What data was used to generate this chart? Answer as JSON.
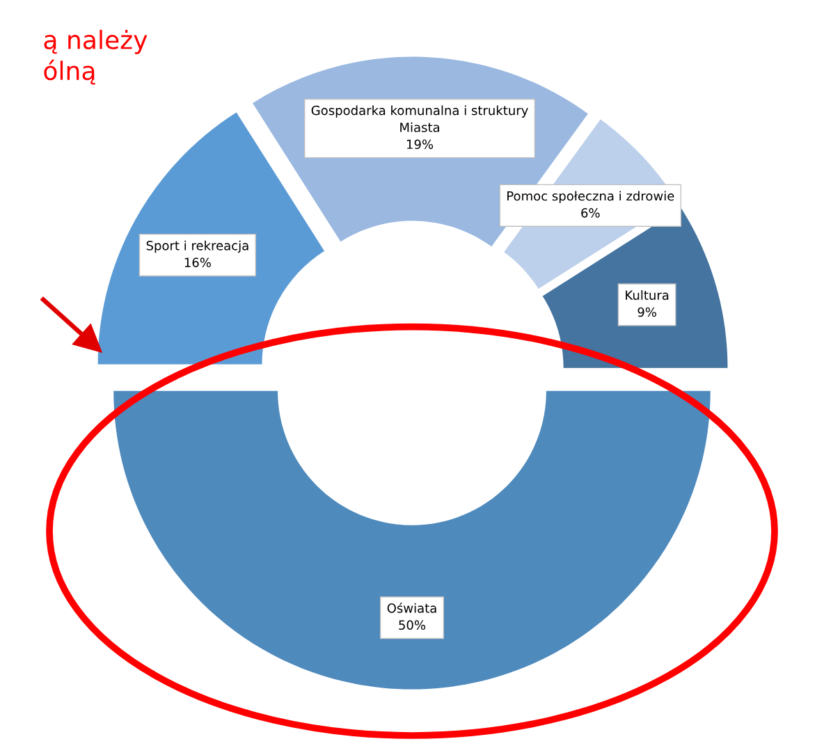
{
  "chart_data": {
    "type": "donut",
    "categories": [
      "Sport i rekreacja",
      "Gospodarka komunalna i struktury\nMiasta",
      "Pomoc społeczna i zdrowie",
      "Kultura",
      "Oświata"
    ],
    "values": [
      16,
      19,
      6,
      9,
      50
    ],
    "value_labels": [
      "16%",
      "19%",
      "6%",
      "9%",
      "50%"
    ],
    "colors": [
      "#5b9bd5",
      "#9ab8e0",
      "#bdd0eb",
      "#44749f",
      "#4f8abd"
    ],
    "annotations": [
      "ą należy\nólną"
    ],
    "legend": false
  }
}
